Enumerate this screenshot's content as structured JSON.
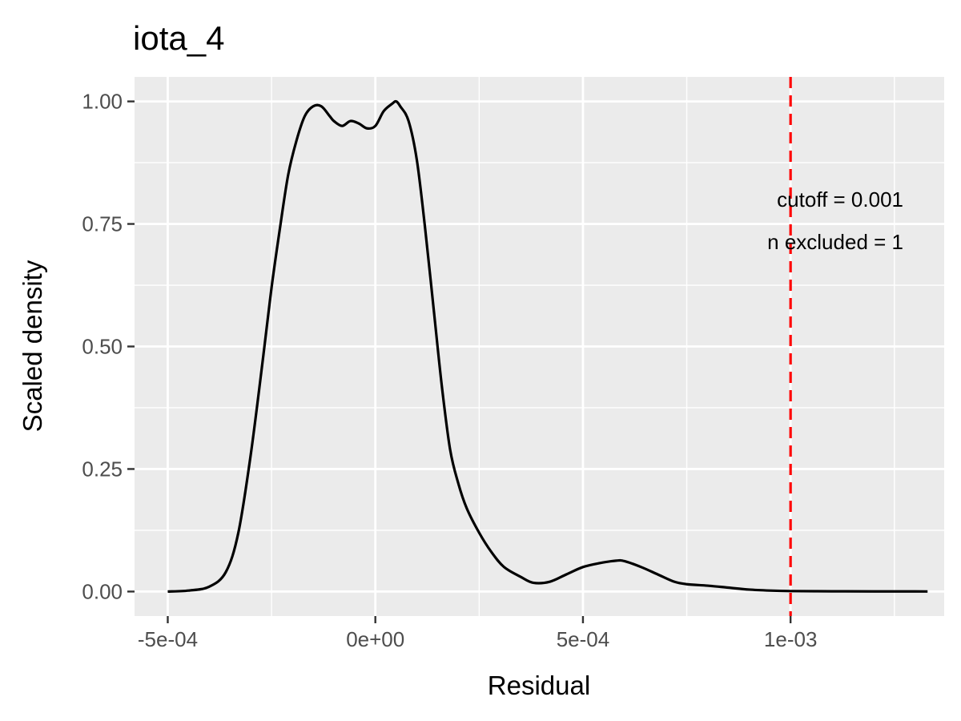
{
  "chart_data": {
    "type": "line",
    "title": "iota_4",
    "xlabel": "Residual",
    "ylabel": "Scaled density",
    "xlim": [
      -0.00058,
      0.00137
    ],
    "ylim": [
      -0.05,
      1.05
    ],
    "x_ticks": [
      {
        "value": -0.0005,
        "label": "-5e-04"
      },
      {
        "value": 0.0,
        "label": "0e+00"
      },
      {
        "value": 0.0005,
        "label": "5e-04"
      },
      {
        "value": 0.001,
        "label": "1e-03"
      }
    ],
    "y_ticks": [
      {
        "value": 0.0,
        "label": "0.00"
      },
      {
        "value": 0.25,
        "label": "0.25"
      },
      {
        "value": 0.5,
        "label": "0.50"
      },
      {
        "value": 0.75,
        "label": "0.75"
      },
      {
        "value": 1.0,
        "label": "1.00"
      }
    ],
    "grid": true,
    "series": [
      {
        "color": "#000000",
        "x": [
          -0.0005,
          -0.00045,
          -0.0004,
          -0.00036,
          -0.00033,
          -0.0003,
          -0.00027,
          -0.00025,
          -0.00023,
          -0.00021,
          -0.00019,
          -0.00017,
          -0.00015,
          -0.00013,
          -0.00011,
          -0.0001,
          -8e-05,
          -6e-05,
          -4e-05,
          -2e-05,
          0.0,
          2e-05,
          4e-05,
          5e-05,
          6e-05,
          8e-05,
          0.0001,
          0.00012,
          0.00014,
          0.00016,
          0.00018,
          0.0002,
          0.00022,
          0.00025,
          0.00028,
          0.00031,
          0.00035,
          0.00038,
          0.00042,
          0.00046,
          0.0005,
          0.00054,
          0.00058,
          0.0006,
          0.00064,
          0.00068,
          0.00072,
          0.00075,
          0.0008,
          0.00085,
          0.0009,
          0.00095,
          0.001,
          0.0011,
          0.0012,
          0.00133
        ],
        "y": [
          0.0,
          0.002,
          0.01,
          0.04,
          0.12,
          0.28,
          0.48,
          0.62,
          0.74,
          0.85,
          0.92,
          0.97,
          0.99,
          0.99,
          0.97,
          0.96,
          0.95,
          0.96,
          0.955,
          0.945,
          0.95,
          0.98,
          0.995,
          1.0,
          0.99,
          0.96,
          0.88,
          0.74,
          0.58,
          0.42,
          0.29,
          0.22,
          0.17,
          0.12,
          0.08,
          0.05,
          0.03,
          0.018,
          0.02,
          0.035,
          0.05,
          0.058,
          0.063,
          0.062,
          0.05,
          0.035,
          0.02,
          0.015,
          0.012,
          0.008,
          0.004,
          0.002,
          0.001,
          0.0005,
          0.0003,
          0.0002
        ]
      }
    ],
    "cutoff": {
      "value": 0.001,
      "color": "#ff0000",
      "label": "cutoff = 0.001",
      "excluded_label": "n excluded = 1"
    }
  }
}
